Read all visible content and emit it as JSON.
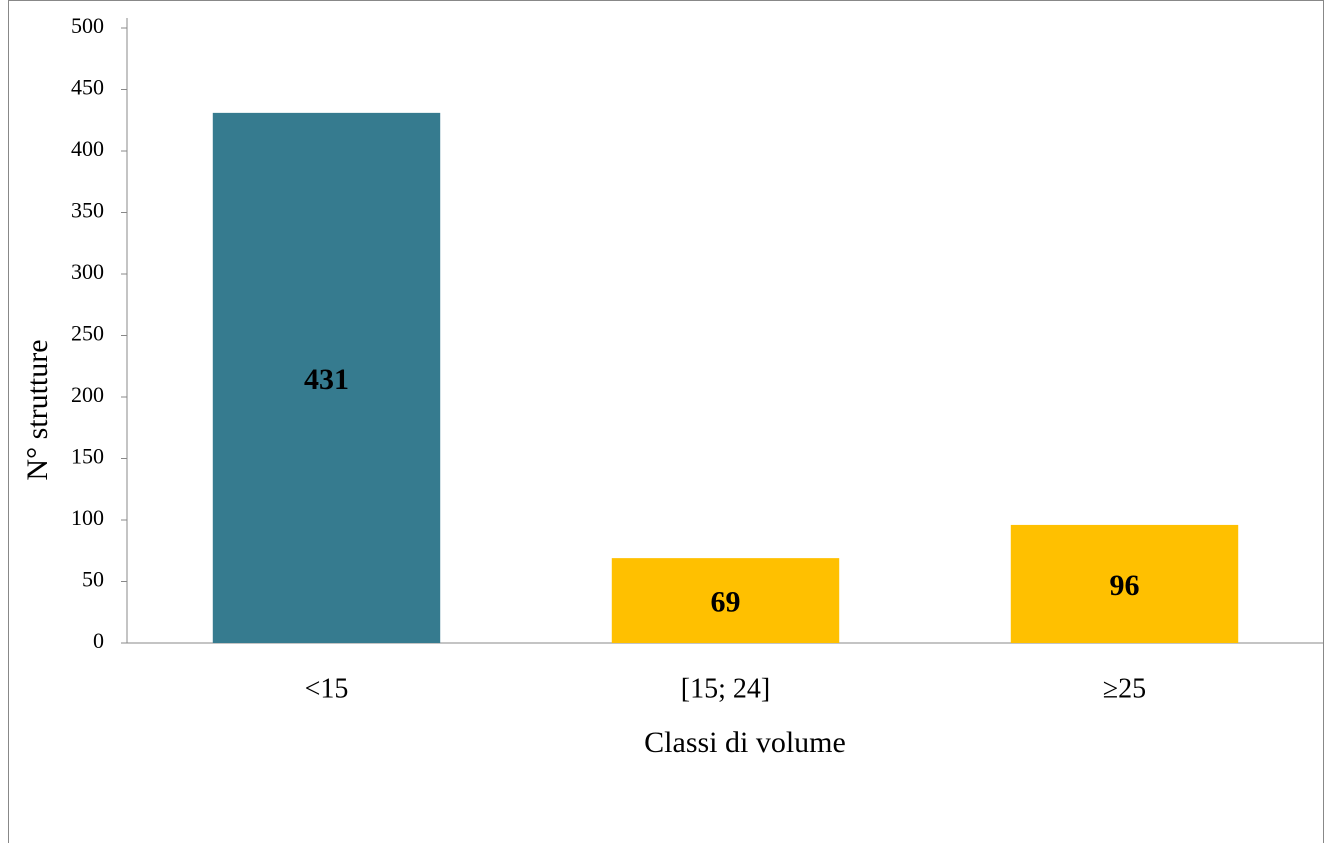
{
  "chart_data": {
    "type": "bar",
    "categories": [
      "<15",
      "[15; 24]",
      "≥25"
    ],
    "values": [
      431,
      69,
      96
    ],
    "colors": [
      "#367b8f",
      "#ffc000",
      "#ffc000"
    ],
    "x_label": "Classi di volume",
    "y_label": "N° strutture",
    "ylim": [
      0,
      500
    ],
    "yticks": [
      0,
      50,
      100,
      150,
      200,
      250,
      300,
      350,
      400,
      450,
      500
    ],
    "grid": false
  }
}
